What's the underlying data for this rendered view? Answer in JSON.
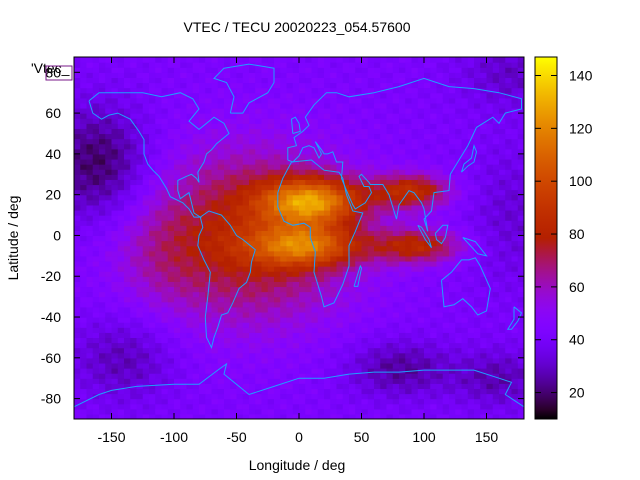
{
  "chart_data": {
    "type": "heatmap",
    "title": "VTEC / TECU 20020223_054.57600",
    "xlabel": "Longitude / deg",
    "ylabel": "Latitude / deg",
    "series_label": "'Vtec_",
    "xlim": [
      -180,
      180
    ],
    "ylim": [
      -90,
      87.5
    ],
    "xticks": [
      -150,
      -100,
      -50,
      0,
      50,
      100,
      150
    ],
    "xtick_labels": [
      "-150",
      "-100",
      "-50",
      "0",
      "50",
      "100",
      "150"
    ],
    "yticks": [
      -80,
      -60,
      -40,
      -20,
      0,
      20,
      40,
      60,
      80
    ],
    "ytick_labels": [
      "-80",
      "-60",
      "-40",
      "-20",
      "0",
      "20",
      "40",
      "60",
      "80"
    ],
    "colorbar": {
      "min": 10,
      "max": 147,
      "ticks": [
        20,
        40,
        60,
        80,
        100,
        120,
        140
      ],
      "tick_labels": [
        "20",
        "40",
        "60",
        "80",
        "100",
        "120",
        "140"
      ]
    },
    "grid": {
      "lon_step": 5,
      "lat_step": 2.5
    },
    "structure": {
      "background_tecu": 42,
      "enhancements": [
        {
          "lon": -40,
          "lat": 0,
          "lon_sigma": 60,
          "lat_sigma": 30,
          "amp_tecu": 40
        },
        {
          "lon": 10,
          "lat": 17,
          "lon_sigma": 28,
          "lat_sigma": 8,
          "amp_tecu": 65
        },
        {
          "lon": 5,
          "lat": -5,
          "lon_sigma": 30,
          "lat_sigma": 7,
          "amp_tecu": 50
        },
        {
          "lon": 90,
          "lat": 22,
          "lon_sigma": 22,
          "lat_sigma": 6,
          "amp_tecu": 42
        },
        {
          "lon": 95,
          "lat": -5,
          "lon_sigma": 25,
          "lat_sigma": 6,
          "amp_tecu": 38
        },
        {
          "lon": -110,
          "lat": -10,
          "lon_sigma": 25,
          "lat_sigma": 18,
          "amp_tecu": 8
        }
      ],
      "depletions": [
        {
          "lon": -160,
          "lat": 35,
          "lon_sigma": 30,
          "lat_sigma": 20,
          "amp_tecu": -25
        },
        {
          "lon": 170,
          "lat": 10,
          "lon_sigma": 25,
          "lat_sigma": 25,
          "amp_tecu": -10
        },
        {
          "lon": -140,
          "lat": -60,
          "lon_sigma": 30,
          "lat_sigma": 15,
          "amp_tecu": -15
        },
        {
          "lon": 80,
          "lat": -65,
          "lon_sigma": 30,
          "lat_sigma": 10,
          "amp_tecu": -18
        },
        {
          "lon": 160,
          "lat": -70,
          "lon_sigma": 25,
          "lat_sigma": 10,
          "amp_tecu": -15
        },
        {
          "lon": 170,
          "lat": 80,
          "lon_sigma": 30,
          "lat_sigma": 12,
          "amp_tecu": -12
        }
      ]
    },
    "coastlines": {
      "color": "#1ea0ff",
      "north_america": [
        [
          -168,
          66
        ],
        [
          -160,
          70
        ],
        [
          -140,
          70
        ],
        [
          -125,
          70
        ],
        [
          -110,
          68
        ],
        [
          -95,
          70
        ],
        [
          -85,
          67
        ],
        [
          -80,
          62
        ],
        [
          -88,
          56
        ],
        [
          -80,
          52
        ],
        [
          -68,
          58
        ],
        [
          -60,
          55
        ],
        [
          -56,
          50
        ],
        [
          -66,
          45
        ],
        [
          -70,
          42
        ],
        [
          -74,
          40
        ],
        [
          -76,
          36
        ],
        [
          -81,
          31
        ],
        [
          -80,
          26
        ],
        [
          -82,
          28
        ],
        [
          -86,
          30
        ],
        [
          -90,
          29
        ],
        [
          -97,
          27
        ],
        [
          -97,
          22
        ],
        [
          -95,
          18
        ],
        [
          -88,
          21
        ],
        [
          -86,
          16
        ],
        [
          -84,
          11
        ],
        [
          -79,
          9
        ],
        [
          -84,
          9
        ],
        [
          -88,
          13
        ],
        [
          -93,
          16
        ],
        [
          -103,
          19
        ],
        [
          -106,
          23
        ],
        [
          -112,
          29
        ],
        [
          -117,
          32
        ],
        [
          -121,
          35
        ],
        [
          -124,
          40
        ],
        [
          -124,
          47
        ],
        [
          -128,
          51
        ],
        [
          -135,
          57
        ],
        [
          -145,
          60
        ],
        [
          -152,
          59
        ],
        [
          -158,
          57
        ],
        [
          -165,
          60
        ],
        [
          -168,
          66
        ]
      ],
      "greenland": [
        [
          -55,
          60
        ],
        [
          -45,
          60
        ],
        [
          -40,
          65
        ],
        [
          -25,
          70
        ],
        [
          -20,
          75
        ],
        [
          -20,
          82
        ],
        [
          -40,
          84
        ],
        [
          -60,
          82
        ],
        [
          -68,
          77
        ],
        [
          -58,
          75
        ],
        [
          -52,
          68
        ],
        [
          -55,
          60
        ]
      ],
      "south_america": [
        [
          -79,
          9
        ],
        [
          -72,
          12
        ],
        [
          -62,
          10
        ],
        [
          -55,
          5
        ],
        [
          -50,
          0
        ],
        [
          -45,
          -2
        ],
        [
          -35,
          -7
        ],
        [
          -38,
          -13
        ],
        [
          -39,
          -18
        ],
        [
          -42,
          -23
        ],
        [
          -48,
          -26
        ],
        [
          -53,
          -33
        ],
        [
          -57,
          -38
        ],
        [
          -62,
          -39
        ],
        [
          -65,
          -45
        ],
        [
          -68,
          -50
        ],
        [
          -70,
          -55
        ],
        [
          -74,
          -50
        ],
        [
          -75,
          -40
        ],
        [
          -73,
          -30
        ],
        [
          -71,
          -18
        ],
        [
          -76,
          -12
        ],
        [
          -81,
          -5
        ],
        [
          -80,
          0
        ],
        [
          -77,
          4
        ],
        [
          -79,
          9
        ]
      ],
      "africa": [
        [
          -17,
          21
        ],
        [
          -13,
          28
        ],
        [
          -6,
          36
        ],
        [
          10,
          37
        ],
        [
          20,
          32
        ],
        [
          32,
          31
        ],
        [
          35,
          28
        ],
        [
          38,
          20
        ],
        [
          43,
          12
        ],
        [
          51,
          11
        ],
        [
          45,
          2
        ],
        [
          40,
          -5
        ],
        [
          40,
          -15
        ],
        [
          35,
          -24
        ],
        [
          28,
          -33
        ],
        [
          20,
          -35
        ],
        [
          18,
          -30
        ],
        [
          12,
          -18
        ],
        [
          13,
          -8
        ],
        [
          9,
          -1
        ],
        [
          9,
          4
        ],
        [
          4,
          6
        ],
        [
          -5,
          5
        ],
        [
          -12,
          7
        ],
        [
          -17,
          14
        ],
        [
          -17,
          21
        ]
      ],
      "eurasia": [
        [
          -9,
          37
        ],
        [
          -9,
          43
        ],
        [
          -2,
          44
        ],
        [
          -4,
          48
        ],
        [
          3,
          51
        ],
        [
          8,
          54
        ],
        [
          5,
          58
        ],
        [
          12,
          64
        ],
        [
          22,
          70
        ],
        [
          30,
          70
        ],
        [
          40,
          68
        ],
        [
          60,
          70
        ],
        [
          80,
          73
        ],
        [
          100,
          77
        ],
        [
          120,
          73
        ],
        [
          140,
          72
        ],
        [
          160,
          70
        ],
        [
          178,
          67
        ],
        [
          178,
          62
        ],
        [
          165,
          60
        ],
        [
          160,
          55
        ],
        [
          155,
          58
        ],
        [
          142,
          53
        ],
        [
          135,
          44
        ],
        [
          128,
          37
        ],
        [
          121,
          30
        ],
        [
          120,
          22
        ],
        [
          108,
          21
        ],
        [
          106,
          12
        ],
        [
          100,
          8
        ],
        [
          103,
          2
        ],
        [
          100,
          13
        ],
        [
          98,
          16
        ],
        [
          92,
          21
        ],
        [
          88,
          22
        ],
        [
          80,
          15
        ],
        [
          78,
          8
        ],
        [
          72,
          20
        ],
        [
          67,
          25
        ],
        [
          57,
          25
        ],
        [
          56,
          26
        ],
        [
          50,
          30
        ],
        [
          48,
          29
        ],
        [
          52,
          24
        ],
        [
          56,
          24
        ],
        [
          58,
          21
        ],
        [
          53,
          16
        ],
        [
          45,
          13
        ],
        [
          43,
          15
        ],
        [
          38,
          22
        ],
        [
          34,
          28
        ],
        [
          35,
          36
        ],
        [
          30,
          36
        ],
        [
          27,
          41
        ],
        [
          23,
          40
        ],
        [
          20,
          40
        ],
        [
          18,
          42
        ],
        [
          13,
          46
        ],
        [
          18,
          40
        ],
        [
          16,
          38
        ],
        [
          12,
          43
        ],
        [
          8,
          44
        ],
        [
          3,
          43
        ],
        [
          0,
          39
        ],
        [
          -5,
          36
        ],
        [
          -9,
          37
        ]
      ],
      "britain": [
        [
          -5,
          50
        ],
        [
          1,
          51
        ],
        [
          0,
          55
        ],
        [
          -3,
          58
        ],
        [
          -6,
          57
        ],
        [
          -5,
          50
        ]
      ],
      "madagascar": [
        [
          44,
          -25
        ],
        [
          49,
          -15
        ],
        [
          50,
          -16
        ],
        [
          47,
          -25
        ],
        [
          44,
          -25
        ]
      ],
      "australia": [
        [
          114,
          -22
        ],
        [
          122,
          -18
        ],
        [
          130,
          -12
        ],
        [
          136,
          -12
        ],
        [
          141,
          -11
        ],
        [
          145,
          -15
        ],
        [
          153,
          -26
        ],
        [
          150,
          -37
        ],
        [
          143,
          -39
        ],
        [
          138,
          -35
        ],
        [
          131,
          -31
        ],
        [
          124,
          -34
        ],
        [
          116,
          -35
        ],
        [
          114,
          -22
        ]
      ],
      "new_zealand": [
        [
          172,
          -35
        ],
        [
          178,
          -38
        ],
        [
          175,
          -42
        ],
        [
          170,
          -46
        ],
        [
          167,
          -46
        ],
        [
          172,
          -41
        ],
        [
          172,
          -35
        ]
      ],
      "japan": [
        [
          130,
          31
        ],
        [
          135,
          34
        ],
        [
          140,
          36
        ],
        [
          142,
          41
        ],
        [
          140,
          44
        ],
        [
          138,
          38
        ],
        [
          132,
          35
        ],
        [
          130,
          31
        ]
      ],
      "borneo": [
        [
          109,
          1
        ],
        [
          115,
          5
        ],
        [
          119,
          5
        ],
        [
          117,
          -1
        ],
        [
          114,
          -4
        ],
        [
          110,
          -2
        ],
        [
          109,
          1
        ]
      ],
      "sumatra": [
        [
          95,
          5
        ],
        [
          98,
          4
        ],
        [
          104,
          -2
        ],
        [
          106,
          -6
        ],
        [
          101,
          -2
        ],
        [
          95,
          5
        ]
      ],
      "new_guinea": [
        [
          131,
          -1
        ],
        [
          141,
          -3
        ],
        [
          150,
          -10
        ],
        [
          143,
          -9
        ],
        [
          137,
          -5
        ],
        [
          131,
          -1
        ]
      ],
      "antarctica": [
        [
          -180,
          -84
        ],
        [
          -160,
          -78
        ],
        [
          -150,
          -76
        ],
        [
          -130,
          -74
        ],
        [
          -100,
          -73
        ],
        [
          -80,
          -73
        ],
        [
          -65,
          -66
        ],
        [
          -58,
          -63
        ],
        [
          -60,
          -68
        ],
        [
          -40,
          -78
        ],
        [
          -20,
          -74
        ],
        [
          0,
          -70
        ],
        [
          20,
          -70
        ],
        [
          40,
          -68
        ],
        [
          60,
          -67
        ],
        [
          80,
          -67
        ],
        [
          100,
          -66
        ],
        [
          120,
          -66
        ],
        [
          140,
          -66
        ],
        [
          160,
          -70
        ],
        [
          170,
          -72
        ],
        [
          165,
          -78
        ],
        [
          180,
          -84
        ]
      ]
    }
  }
}
